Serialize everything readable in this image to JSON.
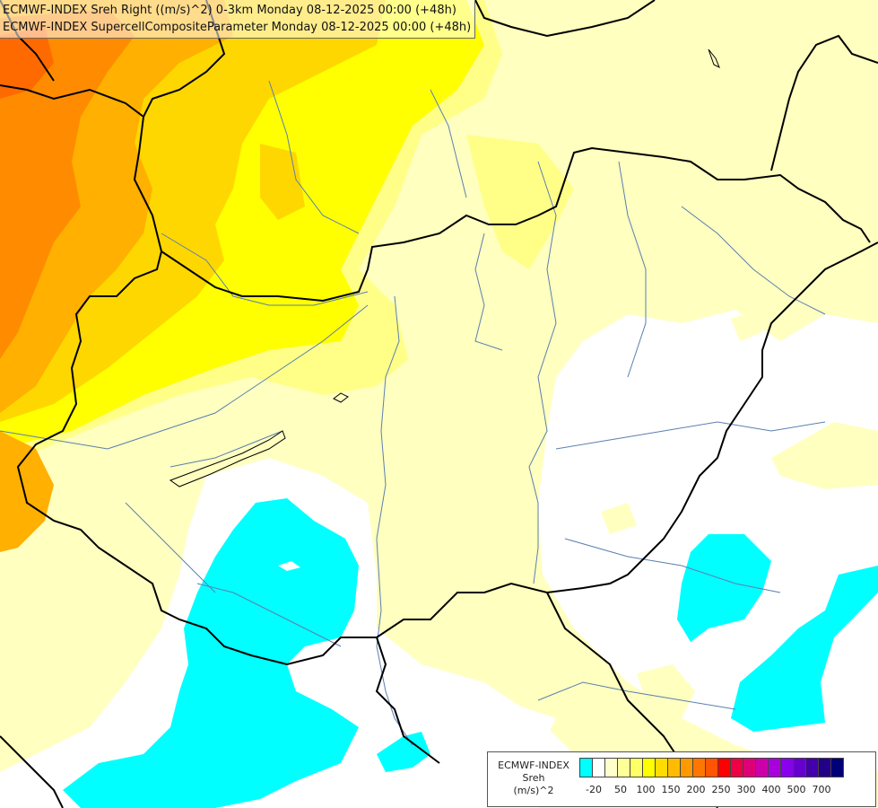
{
  "titles": [
    "ECMWF-INDEX Sreh Right ((m/s)^2) 0-3km Monday 08-12-2025 00:00 (+48h)",
    "ECMWF-INDEX SupercellCompositeParameter Monday 08-12-2025 00:00 (+48h)"
  ],
  "legend": {
    "line1": "ECMWF-INDEX",
    "line2": "Sreh",
    "line3": "(m/s)^2",
    "tick_labels": [
      "-20",
      "50",
      "100",
      "150",
      "200",
      "250",
      "300",
      "400",
      "500",
      "700"
    ],
    "colors": [
      "#00ffff",
      "#ffffff",
      "#ffffcc",
      "#ffff99",
      "#ffff66",
      "#ffff00",
      "#ffdd00",
      "#ffbb00",
      "#ff9900",
      "#ff7700",
      "#ff5500",
      "#ff0000",
      "#ee0044",
      "#dd0077",
      "#cc00aa",
      "#aa00dd",
      "#8800ee",
      "#6600cc",
      "#4400aa",
      "#220088",
      "#000077"
    ]
  },
  "map": {
    "colors": {
      "cyan": "#00ffff",
      "white": "#ffffff",
      "pale": "#ffffc0",
      "light_yellow": "#ffff88",
      "yellow": "#ffff00",
      "gold": "#ffd700",
      "amber": "#ffb000",
      "orange": "#ff8c00",
      "dark_orange": "#ff6a00",
      "border": "#000000",
      "river": "#5a7fb0"
    }
  }
}
